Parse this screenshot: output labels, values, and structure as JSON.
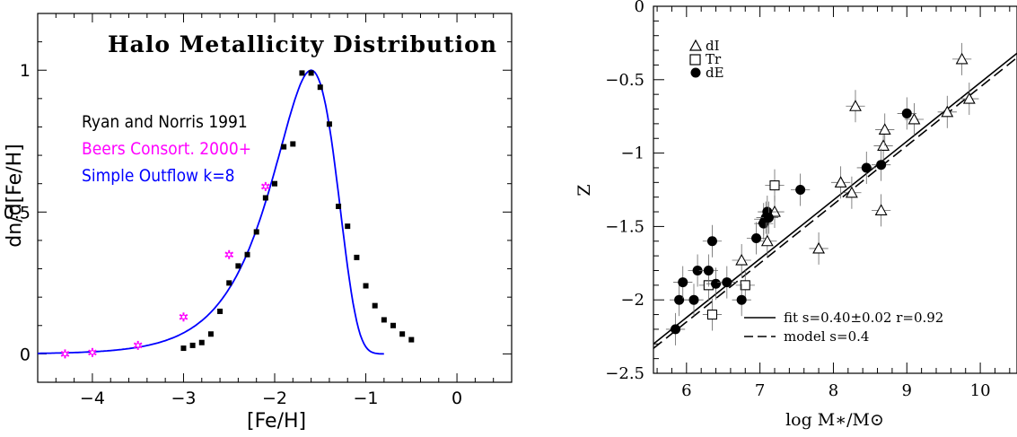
{
  "chart_data": [
    {
      "type": "line",
      "title": "Halo Metallicity Distribution",
      "xlabel": "[Fe/H]",
      "ylabel": "dn/d[Fe/H]",
      "xlim": [
        -4.6,
        0.6
      ],
      "ylim": [
        -0.1,
        1.2
      ],
      "xticks": [
        -4,
        -3,
        -2,
        -1,
        0
      ],
      "xtick_labels": [
        "−4",
        "−3",
        "−2",
        "−1",
        "0"
      ],
      "yticks": [
        0,
        0.5,
        1
      ],
      "ytick_labels": [
        "0",
        "0.5",
        "1"
      ],
      "colors": {
        "ryan": "#000000",
        "beers": "#ff00ff",
        "model": "#0000ff"
      },
      "series": [
        {
          "name": "Ryan and Norris 1991",
          "marker": "square",
          "x": [
            -3.0,
            -2.9,
            -2.8,
            -2.7,
            -2.6,
            -2.5,
            -2.4,
            -2.3,
            -2.2,
            -2.1,
            -2.0,
            -1.9,
            -1.8,
            -1.7,
            -1.6,
            -1.5,
            -1.4,
            -1.3,
            -1.2,
            -1.1,
            -1.0,
            -0.9,
            -0.8,
            -0.7,
            -0.6,
            -0.5
          ],
          "y": [
            0.02,
            0.03,
            0.04,
            0.07,
            0.15,
            0.25,
            0.31,
            0.35,
            0.43,
            0.55,
            0.6,
            0.73,
            0.74,
            0.99,
            0.99,
            0.94,
            0.81,
            0.52,
            0.45,
            0.34,
            0.24,
            0.17,
            0.12,
            0.1,
            0.07,
            0.05
          ]
        },
        {
          "name": "Beers Consort. 2000+",
          "marker": "star",
          "x": [
            -4.3,
            -4.0,
            -3.5,
            -3.0,
            -2.5,
            -2.1
          ],
          "y": [
            0.0,
            0.005,
            0.03,
            0.13,
            0.35,
            0.59
          ]
        },
        {
          "name": "Simple Outflow k=8",
          "marker": "none",
          "model": "simple outflow",
          "k": 8,
          "xrange": [
            -4.6,
            -0.8
          ]
        }
      ]
    },
    {
      "type": "scatter",
      "xlabel": "log M∗/M⊙",
      "ylabel": "Z",
      "xlim": [
        5.55,
        10.5
      ],
      "ylim": [
        -2.5,
        0
      ],
      "xticks": [
        6,
        7,
        8,
        9,
        10
      ],
      "xtick_labels": [
        "6",
        "7",
        "8",
        "9",
        "10"
      ],
      "yticks": [
        -2.5,
        -2,
        -1.5,
        -1,
        -0.5,
        0
      ],
      "ytick_labels": [
        "−2.5",
        "−2",
        "−1.5",
        "−1",
        "−0.5",
        "0"
      ],
      "legend": [
        "dI",
        "Tr",
        "dE"
      ],
      "fit_label": "fit  s=0.40±0.02   r=0.92",
      "model_label": "model  s=0.4",
      "fit": {
        "slope": 0.4,
        "intercept": -4.52
      },
      "model": {
        "slope": 0.4,
        "intercept": -4.55
      },
      "dI": [
        [
          6.75,
          -1.73
        ],
        [
          7.05,
          -1.45
        ],
        [
          7.1,
          -1.6
        ],
        [
          7.2,
          -1.4
        ],
        [
          7.8,
          -1.65
        ],
        [
          8.1,
          -1.2
        ],
        [
          8.25,
          -1.27
        ],
        [
          8.3,
          -0.68
        ],
        [
          8.65,
          -1.39
        ],
        [
          8.68,
          -0.95
        ],
        [
          8.7,
          -0.84
        ],
        [
          9.1,
          -0.77
        ],
        [
          9.55,
          -0.72
        ],
        [
          9.75,
          -0.36
        ],
        [
          9.85,
          -0.63
        ]
      ],
      "Tr": [
        [
          6.3,
          -1.9
        ],
        [
          6.35,
          -2.1
        ],
        [
          6.8,
          -1.9
        ],
        [
          7.2,
          -1.22
        ]
      ],
      "dE": [
        [
          5.85,
          -2.2
        ],
        [
          5.9,
          -2.0
        ],
        [
          5.95,
          -1.88
        ],
        [
          6.1,
          -2.0
        ],
        [
          6.15,
          -1.8
        ],
        [
          6.3,
          -1.8
        ],
        [
          6.35,
          -1.6
        ],
        [
          6.4,
          -1.89
        ],
        [
          6.55,
          -1.88
        ],
        [
          6.75,
          -2.0
        ],
        [
          6.95,
          -1.58
        ],
        [
          7.05,
          -1.48
        ],
        [
          7.08,
          -1.44
        ],
        [
          7.1,
          -1.4
        ],
        [
          7.12,
          -1.44
        ],
        [
          7.55,
          -1.25
        ],
        [
          8.45,
          -1.1
        ],
        [
          8.65,
          -1.08
        ],
        [
          9.0,
          -0.73
        ]
      ]
    }
  ]
}
